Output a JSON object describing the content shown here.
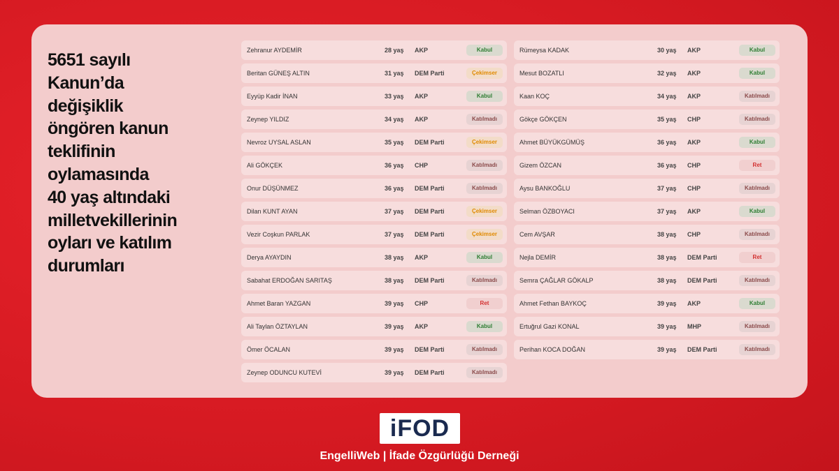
{
  "title_lines": [
    "5651 sayılı",
    "Kanun’da",
    "değişiklik",
    "öngören kanun",
    "teklifinin",
    "oylamasında",
    "40 yaş altındaki",
    "milletvekillerinin",
    "oyları ve katılım",
    "durumları"
  ],
  "columns": [
    [
      {
        "name": "Zehranur AYDEMİR",
        "age": "28 yaş",
        "party": "AKP",
        "vote": "Kabul",
        "vote_color": "#2e7d32"
      },
      {
        "name": "Beritan GÜNEŞ ALTIN",
        "age": "31 yaş",
        "party": "DEM Parti",
        "vote": "Çekimser",
        "vote_color": "#e08a00"
      },
      {
        "name": "Eyyüp Kadir İNAN",
        "age": "33 yaş",
        "party": "AKP",
        "vote": "Kabul",
        "vote_color": "#2e7d32"
      },
      {
        "name": "Zeynep YILDIZ",
        "age": "34 yaş",
        "party": "AKP",
        "vote": "Katılmadı",
        "vote_color": "#8b4a4a"
      },
      {
        "name": "Nevroz UYSAL ASLAN",
        "age": "35 yaş",
        "party": "DEM Parti",
        "vote": "Çekimser",
        "vote_color": "#e08a00"
      },
      {
        "name": "Ali GÖKÇEK",
        "age": "36 yaş",
        "party": "CHP",
        "vote": "Katılmadı",
        "vote_color": "#8b4a4a"
      },
      {
        "name": "Onur DÜŞÜNMEZ",
        "age": "36 yaş",
        "party": "DEM Parti",
        "vote": "Katılmadı",
        "vote_color": "#8b4a4a"
      },
      {
        "name": "Dilan KUNT AYAN",
        "age": "37 yaş",
        "party": "DEM Parti",
        "vote": "Çekimser",
        "vote_color": "#e08a00"
      },
      {
        "name": "Vezir Coşkun PARLAK",
        "age": "37 yaş",
        "party": "DEM Parti",
        "vote": "Çekimser",
        "vote_color": "#e08a00"
      },
      {
        "name": "Derya AYAYDIN",
        "age": "38 yaş",
        "party": "AKP",
        "vote": "Kabul",
        "vote_color": "#2e7d32"
      },
      {
        "name": "Sabahat ERDOĞAN SARITAŞ",
        "age": "38 yaş",
        "party": "DEM Parti",
        "vote": "Katılmadı",
        "vote_color": "#8b4a4a"
      },
      {
        "name": "Ahmet Baran YAZGAN",
        "age": "39 yaş",
        "party": "CHP",
        "vote": "Ret",
        "vote_color": "#d32f2f"
      },
      {
        "name": "Ali Taylan ÖZTAYLAN",
        "age": "39 yaş",
        "party": "AKP",
        "vote": "Kabul",
        "vote_color": "#2e7d32"
      },
      {
        "name": "Ömer ÖCALAN",
        "age": "39 yaş",
        "party": "DEM Parti",
        "vote": "Katılmadı",
        "vote_color": "#8b4a4a"
      },
      {
        "name": "Zeynep ODUNCU KUTEVİ",
        "age": "39 yaş",
        "party": "DEM Parti",
        "vote": "Katılmadı",
        "vote_color": "#8b4a4a"
      }
    ],
    [
      {
        "name": "Rümeysa KADAK",
        "age": "30 yaş",
        "party": "AKP",
        "vote": "Kabul",
        "vote_color": "#2e7d32"
      },
      {
        "name": "Mesut BOZATLI",
        "age": "32 yaş",
        "party": "AKP",
        "vote": "Kabul",
        "vote_color": "#2e7d32"
      },
      {
        "name": "Kaan KOÇ",
        "age": "34 yaş",
        "party": "AKP",
        "vote": "Katılmadı",
        "vote_color": "#8b4a4a"
      },
      {
        "name": "Gökçe GÖKÇEN",
        "age": "35 yaş",
        "party": "CHP",
        "vote": "Katılmadı",
        "vote_color": "#8b4a4a"
      },
      {
        "name": "Ahmet BÜYÜKGÜMÜŞ",
        "age": "36 yaş",
        "party": "AKP",
        "vote": "Kabul",
        "vote_color": "#2e7d32"
      },
      {
        "name": "Gizem ÖZCAN",
        "age": "36 yaş",
        "party": "CHP",
        "vote": "Ret",
        "vote_color": "#d32f2f"
      },
      {
        "name": "Aysu BANKOĞLU",
        "age": "37 yaş",
        "party": "CHP",
        "vote": "Katılmadı",
        "vote_color": "#8b4a4a"
      },
      {
        "name": "Selman ÖZBOYACI",
        "age": "37 yaş",
        "party": "AKP",
        "vote": "Kabul",
        "vote_color": "#2e7d32"
      },
      {
        "name": "Cem AVŞAR",
        "age": "38 yaş",
        "party": "CHP",
        "vote": "Katılmadı",
        "vote_color": "#8b4a4a"
      },
      {
        "name": "Nejla DEMİR",
        "age": "38 yaş",
        "party": "DEM Parti",
        "vote": "Ret",
        "vote_color": "#d32f2f"
      },
      {
        "name": "Semra ÇAĞLAR GÖKALP",
        "age": "38 yaş",
        "party": "DEM Parti",
        "vote": "Katılmadı",
        "vote_color": "#8b4a4a"
      },
      {
        "name": "Ahmet Fethan BAYKOÇ",
        "age": "39 yaş",
        "party": "AKP",
        "vote": "Kabul",
        "vote_color": "#2e7d32"
      },
      {
        "name": "Ertuğrul Gazi KONAL",
        "age": "39 yaş",
        "party": "MHP",
        "vote": "Katılmadı",
        "vote_color": "#8b4a4a"
      },
      {
        "name": "Perihan KOCA DOĞAN",
        "age": "39 yaş",
        "party": "DEM Parti",
        "vote": "Katılmadı",
        "vote_color": "#8b4a4a"
      }
    ]
  ],
  "logo": "iFOD",
  "footer": "EngelliWeb | İfade Özgürlüğü Derneği"
}
